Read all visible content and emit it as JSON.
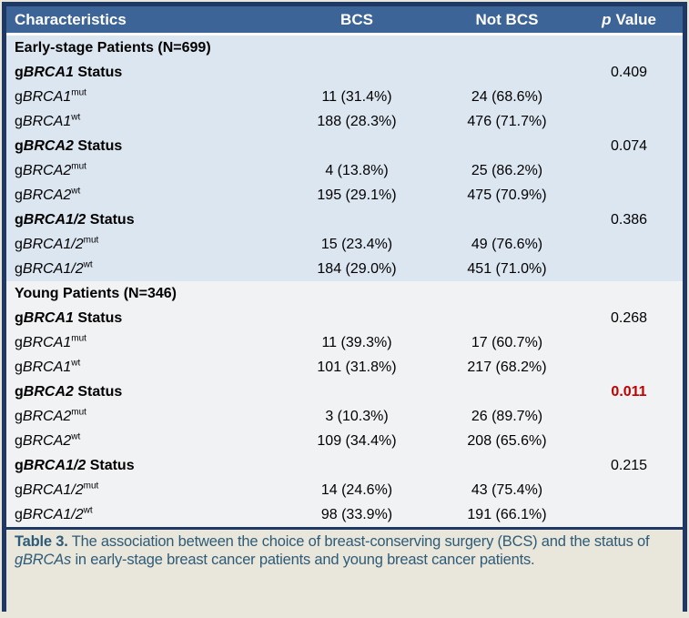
{
  "colors": {
    "frame_border": "#1F3864",
    "header_bg": "#3D6496",
    "header_text": "#FFFFFF",
    "early_section_bg": "#DCE6F1",
    "young_section_bg": "#F1F2F4",
    "p_significant": "#C00000",
    "caption_bg": "#E9E6DB",
    "caption_text": "#2E5B77"
  },
  "header": {
    "characteristics": "Characteristics",
    "bcs": "BCS",
    "not_bcs": "Not BCS",
    "p_italic": "p",
    "p_rest": "Value"
  },
  "sections": [
    {
      "title": "Early-stage Patients (N=699)",
      "theme": "early",
      "groups": [
        {
          "prefix": "g",
          "gene": "BRCA1",
          "suffix": " Status",
          "p": "0.409",
          "significant": false,
          "rows": [
            {
              "prefix": "g",
              "gene": "BRCA1",
              "sup": "mut",
              "bcs": "11 (31.4%)",
              "not_bcs": "24 (68.6%)"
            },
            {
              "prefix": "g",
              "gene": "BRCA1",
              "sup": "wt",
              "bcs": "188 (28.3%)",
              "not_bcs": "476 (71.7%)"
            }
          ]
        },
        {
          "prefix": "g",
          "gene": "BRCA2",
          "suffix": " Status",
          "p": "0.074",
          "significant": false,
          "rows": [
            {
              "prefix": "g",
              "gene": "BRCA2",
              "sup": "mut",
              "bcs": "4 (13.8%)",
              "not_bcs": "25 (86.2%)"
            },
            {
              "prefix": "g",
              "gene": "BRCA2",
              "sup": "wt",
              "bcs": "195 (29.1%)",
              "not_bcs": "475 (70.9%)"
            }
          ]
        },
        {
          "prefix": "g",
          "gene": "BRCA1/2",
          "suffix": " Status",
          "p": "0.386",
          "significant": false,
          "rows": [
            {
              "prefix": "g",
              "gene": "BRCA1/2",
              "sup": "mut",
              "bcs": "15 (23.4%)",
              "not_bcs": "49 (76.6%)"
            },
            {
              "prefix": "g",
              "gene": "BRCA1/2",
              "sup": "wt",
              "bcs": "184 (29.0%)",
              "not_bcs": "451 (71.0%)"
            }
          ]
        }
      ]
    },
    {
      "title": "Young Patients (N=346)",
      "theme": "young",
      "groups": [
        {
          "prefix": "g",
          "gene": "BRCA1",
          "suffix": " Status",
          "p": "0.268",
          "significant": false,
          "rows": [
            {
              "prefix": "g",
              "gene": "BRCA1",
              "sup": "mut",
              "bcs": "11 (39.3%)",
              "not_bcs": "17 (60.7%)"
            },
            {
              "prefix": "g",
              "gene": "BRCA1",
              "sup": "wt",
              "bcs": "101 (31.8%)",
              "not_bcs": "217 (68.2%)"
            }
          ]
        },
        {
          "prefix": "g",
          "gene": "BRCA2",
          "suffix": " Status",
          "p": "0.011",
          "significant": true,
          "rows": [
            {
              "prefix": "g",
              "gene": "BRCA2",
              "sup": "mut",
              "bcs": "3 (10.3%)",
              "not_bcs": "26 (89.7%)"
            },
            {
              "prefix": "g",
              "gene": "BRCA2",
              "sup": "wt",
              "bcs": "109 (34.4%)",
              "not_bcs": "208 (65.6%)"
            }
          ]
        },
        {
          "prefix": "g",
          "gene": "BRCA1/2",
          "suffix": " Status",
          "p": "0.215",
          "significant": false,
          "rows": [
            {
              "prefix": "g",
              "gene": "BRCA1/2",
              "sup": "mut",
              "bcs": "14 (24.6%)",
              "not_bcs": "43 (75.4%)"
            },
            {
              "prefix": "g",
              "gene": "BRCA1/2",
              "sup": "wt",
              "bcs": "98 (33.9%)",
              "not_bcs": "191 (66.1%)"
            }
          ]
        }
      ]
    }
  ],
  "caption": {
    "label": "Table 3.",
    "part1": " The association between the choice of breast-conserving surgery (BCS) and the status of ",
    "italic": "gBRCAs",
    "part2": " in early-stage breast cancer patients and young breast cancer patients."
  }
}
